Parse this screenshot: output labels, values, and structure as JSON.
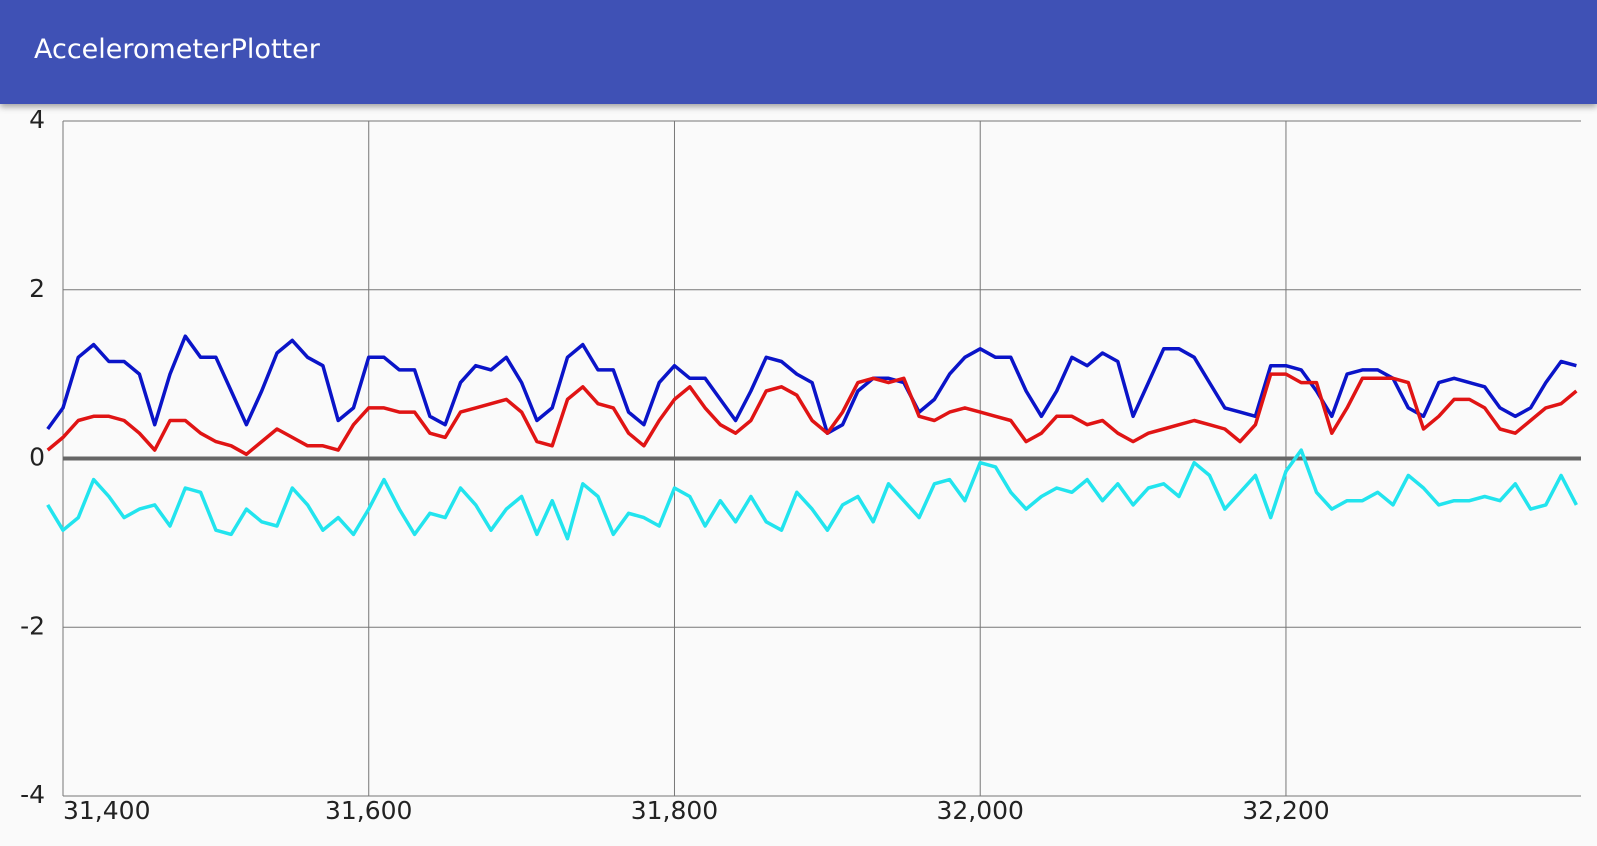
{
  "app_bar": {
    "title": "AccelerometerPlotter"
  },
  "chart_data": {
    "type": "line",
    "x": [
      31390,
      31400,
      31410,
      31420,
      31430,
      31440,
      31450,
      31460,
      31470,
      31480,
      31490,
      31500,
      31510,
      31520,
      31530,
      31540,
      31550,
      31560,
      31570,
      31580,
      31590,
      31600,
      31610,
      31620,
      31630,
      31640,
      31650,
      31660,
      31670,
      31680,
      31690,
      31700,
      31710,
      31720,
      31730,
      31740,
      31750,
      31760,
      31770,
      31780,
      31790,
      31800,
      31810,
      31820,
      31830,
      31840,
      31850,
      31860,
      31870,
      31880,
      31890,
      31900,
      31910,
      31920,
      31930,
      31940,
      31950,
      31960,
      31970,
      31980,
      31990,
      32000,
      32010,
      32020,
      32030,
      32040,
      32050,
      32060,
      32070,
      32080,
      32090,
      32100,
      32110,
      32120,
      32130,
      32140,
      32150,
      32160,
      32170,
      32180,
      32190,
      32200,
      32210,
      32220,
      32230,
      32240,
      32250,
      32260,
      32270,
      32280,
      32290,
      32300,
      32310,
      32320,
      32330,
      32340,
      32350,
      32360,
      32370,
      32380,
      32390
    ],
    "series": [
      {
        "color": "#0a14c8",
        "values": [
          0.35,
          0.6,
          1.2,
          1.35,
          1.15,
          1.15,
          1.0,
          0.4,
          1.0,
          1.45,
          1.2,
          1.2,
          0.8,
          0.4,
          0.8,
          1.25,
          1.4,
          1.2,
          1.1,
          0.45,
          0.6,
          1.2,
          1.2,
          1.05,
          1.05,
          0.5,
          0.4,
          0.9,
          1.1,
          1.05,
          1.2,
          0.9,
          0.45,
          0.6,
          1.2,
          1.35,
          1.05,
          1.05,
          0.55,
          0.4,
          0.9,
          1.1,
          0.95,
          0.95,
          0.7,
          0.45,
          0.8,
          1.2,
          1.15,
          1.0,
          0.9,
          0.3,
          0.4,
          0.8,
          0.95,
          0.95,
          0.9,
          0.55,
          0.7,
          1.0,
          1.2,
          1.3,
          1.2,
          1.2,
          0.8,
          0.5,
          0.8,
          1.2,
          1.1,
          1.25,
          1.15,
          0.5,
          0.9,
          1.3,
          1.3,
          1.2,
          0.9,
          0.6,
          0.55,
          0.5,
          1.1,
          1.1,
          1.05,
          0.8,
          0.5,
          1.0,
          1.05,
          1.05,
          0.95,
          0.6,
          0.5,
          0.9,
          0.95,
          0.9,
          0.85,
          0.6,
          0.5,
          0.6,
          0.9,
          1.15,
          1.1
        ]
      },
      {
        "color": "#e01414",
        "values": [
          0.1,
          0.25,
          0.45,
          0.5,
          0.5,
          0.45,
          0.3,
          0.1,
          0.45,
          0.45,
          0.3,
          0.2,
          0.15,
          0.05,
          0.2,
          0.35,
          0.25,
          0.15,
          0.15,
          0.1,
          0.4,
          0.6,
          0.6,
          0.55,
          0.55,
          0.3,
          0.25,
          0.55,
          0.6,
          0.65,
          0.7,
          0.55,
          0.2,
          0.15,
          0.7,
          0.85,
          0.65,
          0.6,
          0.3,
          0.15,
          0.45,
          0.7,
          0.85,
          0.6,
          0.4,
          0.3,
          0.45,
          0.8,
          0.85,
          0.75,
          0.45,
          0.3,
          0.55,
          0.9,
          0.95,
          0.9,
          0.95,
          0.5,
          0.45,
          0.55,
          0.6,
          0.55,
          0.5,
          0.45,
          0.2,
          0.3,
          0.5,
          0.5,
          0.4,
          0.45,
          0.3,
          0.2,
          0.3,
          0.35,
          0.4,
          0.45,
          0.4,
          0.35,
          0.2,
          0.4,
          1.0,
          1.0,
          0.9,
          0.9,
          0.3,
          0.6,
          0.95,
          0.95,
          0.95,
          0.9,
          0.35,
          0.5,
          0.7,
          0.7,
          0.6,
          0.35,
          0.3,
          0.45,
          0.6,
          0.65,
          0.8
        ]
      },
      {
        "color": "#22e4ee",
        "values": [
          -0.55,
          -0.85,
          -0.7,
          -0.25,
          -0.45,
          -0.7,
          -0.6,
          -0.55,
          -0.8,
          -0.35,
          -0.4,
          -0.85,
          -0.9,
          -0.6,
          -0.75,
          -0.8,
          -0.35,
          -0.55,
          -0.85,
          -0.7,
          -0.9,
          -0.6,
          -0.25,
          -0.6,
          -0.9,
          -0.65,
          -0.7,
          -0.35,
          -0.55,
          -0.85,
          -0.6,
          -0.45,
          -0.9,
          -0.5,
          -0.95,
          -0.3,
          -0.45,
          -0.9,
          -0.65,
          -0.7,
          -0.8,
          -0.35,
          -0.45,
          -0.8,
          -0.5,
          -0.75,
          -0.45,
          -0.75,
          -0.85,
          -0.4,
          -0.6,
          -0.85,
          -0.55,
          -0.45,
          -0.75,
          -0.3,
          -0.5,
          -0.7,
          -0.3,
          -0.25,
          -0.5,
          -0.05,
          -0.1,
          -0.4,
          -0.6,
          -0.45,
          -0.35,
          -0.4,
          -0.25,
          -0.5,
          -0.3,
          -0.55,
          -0.35,
          -0.3,
          -0.45,
          -0.05,
          -0.2,
          -0.6,
          -0.4,
          -0.2,
          -0.7,
          -0.15,
          0.1,
          -0.4,
          -0.6,
          -0.5,
          -0.5,
          -0.4,
          -0.55,
          -0.2,
          -0.35,
          -0.55,
          -0.5,
          -0.5,
          -0.45,
          -0.5,
          -0.3,
          -0.6,
          -0.55,
          -0.2,
          -0.55
        ]
      }
    ],
    "xlim": [
      31400,
      32393
    ],
    "xticks": [
      {
        "value": 31400,
        "label": "31,400"
      },
      {
        "value": 31600,
        "label": "31,600"
      },
      {
        "value": 31800,
        "label": "31,800"
      },
      {
        "value": 32000,
        "label": "32,000"
      },
      {
        "value": 32200,
        "label": "32,200"
      }
    ],
    "ylim": [
      -4,
      4
    ],
    "yticks": [
      -4,
      -2,
      0,
      2,
      4
    ],
    "grid": true
  }
}
